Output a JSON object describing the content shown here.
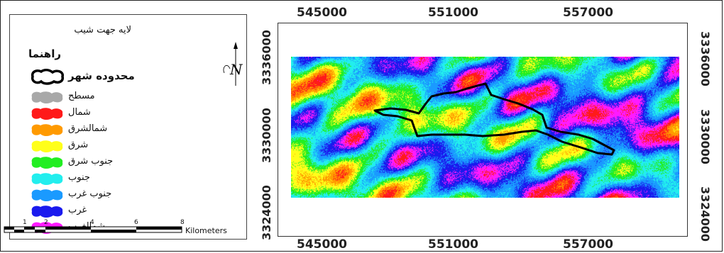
{
  "legend": {
    "title": "لایه جهت شیب",
    "heading": "راهنما",
    "boundary_label": "محدوده شهر",
    "items": [
      {
        "label": "مسطح",
        "color": "#a8a8a8"
      },
      {
        "label": "شمال",
        "color": "#ff1a1a"
      },
      {
        "label": "شمالشرق",
        "color": "#ff9a00"
      },
      {
        "label": "شرق",
        "color": "#ffff1a"
      },
      {
        "label": "جنوب شرق",
        "color": "#22ee22"
      },
      {
        "label": "جنوب",
        "color": "#22eeee"
      },
      {
        "label": "جنوب غرب",
        "color": "#1a9aff"
      },
      {
        "label": "غرب",
        "color": "#1a1aee"
      },
      {
        "label": "شمالغرب",
        "color": "#ff1aff"
      }
    ]
  },
  "north_arrow": {
    "letter": "N"
  },
  "scale": {
    "ticks": [
      "1",
      "2",
      "4",
      "6",
      "8"
    ],
    "unit": "Kilometers"
  },
  "map": {
    "x_ticks": [
      "545000",
      "551000",
      "557000"
    ],
    "y_ticks": [
      "3336000",
      "3330000",
      "3324000"
    ]
  }
}
